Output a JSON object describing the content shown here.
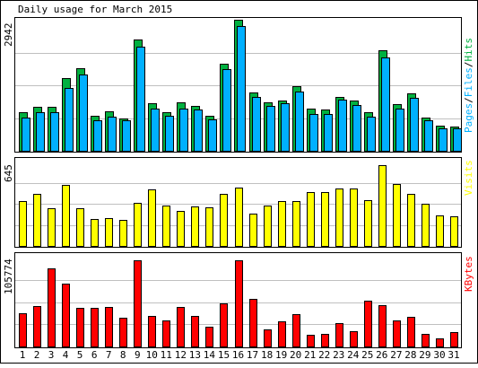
{
  "chart_data": {
    "type": "bar",
    "title": "Daily usage for March 2015",
    "categories": [
      "1",
      "2",
      "3",
      "4",
      "5",
      "6",
      "7",
      "8",
      "9",
      "10",
      "11",
      "12",
      "13",
      "14",
      "15",
      "16",
      "17",
      "18",
      "19",
      "20",
      "21",
      "22",
      "23",
      "24",
      "25",
      "26",
      "27",
      "28",
      "29",
      "30",
      "31"
    ],
    "weekend_days": [
      "1",
      "7",
      "8",
      "14",
      "15",
      "21",
      "22",
      "28",
      "29"
    ],
    "colors": {
      "hits": "#00b040",
      "files": "#00b0ff",
      "pages": "#00b0ff",
      "visits": "#ffff00",
      "kbytes": "#ff0000",
      "weekday_label": "#000000",
      "weekend_label": "#00a000"
    },
    "panels": [
      {
        "id": "hits_files",
        "scale_max": 2942,
        "scale_label": "2942",
        "legend": [
          {
            "text": "Pages",
            "color": "#00b0ff"
          },
          {
            "text": "/",
            "color": "#000000"
          },
          {
            "text": "Files",
            "color": "#00b0ff"
          },
          {
            "text": "/",
            "color": "#000000"
          },
          {
            "text": "Hits",
            "color": "#00b040"
          }
        ],
        "series": [
          {
            "name": "Hits",
            "values": [
              860,
              990,
              990,
              1640,
              1850,
              790,
              880,
              730,
              2490,
              1060,
              870,
              1090,
              1010,
              780,
              1960,
              2940,
              1310,
              1090,
              1130,
              1450,
              940,
              920,
              1210,
              1130,
              860,
              2260,
              1050,
              1280,
              740,
              560,
              540
            ]
          },
          {
            "name": "Files",
            "values": [
              750,
              860,
              870,
              1410,
              1710,
              690,
              760,
              680,
              2330,
              940,
              780,
              940,
              930,
              710,
              1840,
              2800,
              1210,
              1000,
              1060,
              1330,
              830,
              820,
              1140,
              1030,
              760,
              2090,
              950,
              1180,
              680,
              510,
              500
            ]
          }
        ]
      },
      {
        "id": "visits",
        "scale_max": 645,
        "scale_label": "645",
        "legend": [
          {
            "text": "Visits",
            "color": "#ffff00"
          }
        ],
        "series": [
          {
            "name": "Visits",
            "values": [
              340,
              395,
              290,
              467,
              290,
              205,
              215,
              200,
              330,
              430,
              310,
              265,
              300,
              295,
              395,
              445,
              250,
              310,
              345,
              345,
              410,
              415,
              440,
              440,
              350,
              618,
              475,
              400,
              320,
              230,
              228
            ]
          }
        ]
      },
      {
        "id": "kbytes",
        "scale_max": 105774,
        "scale_label": "105774",
        "legend": [
          {
            "text": "KBytes",
            "color": "#ff0000"
          }
        ],
        "series": [
          {
            "name": "KBytes",
            "values": [
              40000,
              48000,
              93000,
              75000,
              46000,
              46000,
              47000,
              34000,
              103000,
              36000,
              31000,
              47000,
              36000,
              23000,
              51000,
              103000,
              57000,
              20000,
              30000,
              38000,
              14000,
              15000,
              28000,
              18000,
              54000,
              49000,
              31000,
              35000,
              15000,
              10000,
              17000
            ]
          }
        ]
      }
    ]
  }
}
